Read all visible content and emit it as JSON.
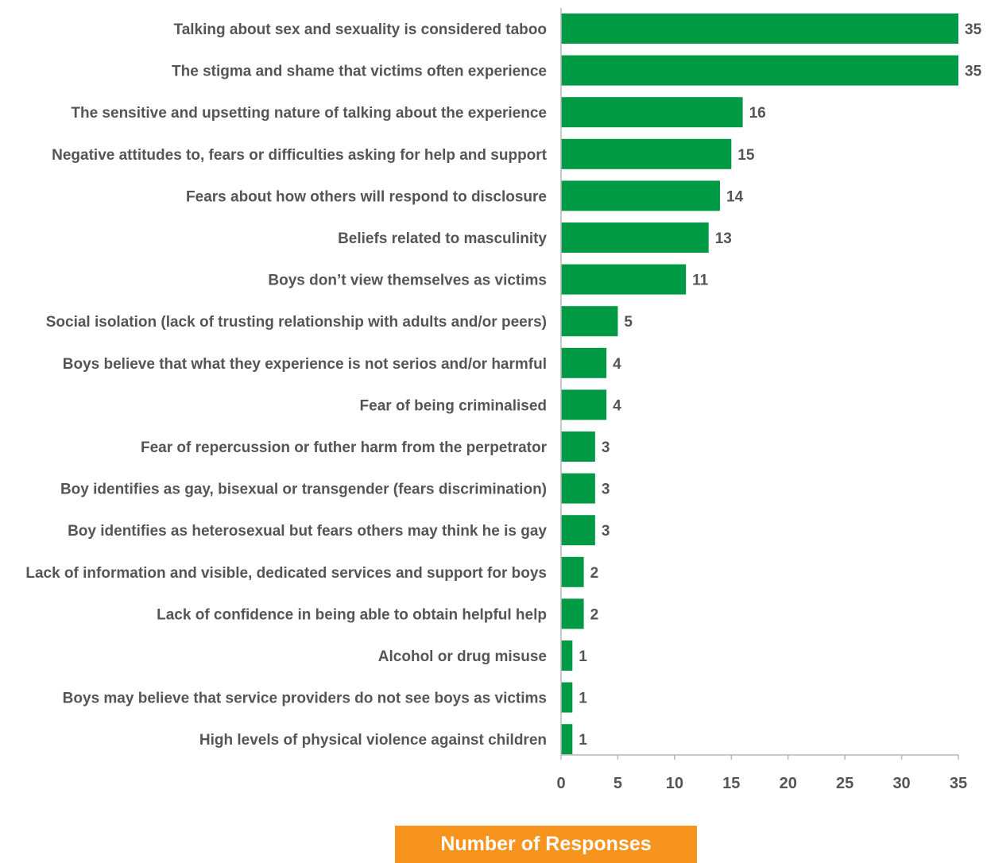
{
  "chart_data": {
    "type": "bar",
    "orientation": "horizontal",
    "categories": [
      "Talking about sex and sexuality is considered taboo",
      "The stigma and shame that victims often experience",
      "The sensitive and upsetting nature of talking about the experience",
      "Negative attitudes to, fears or difficulties asking for help and support",
      "Fears about how others will respond to disclosure",
      "Beliefs related to masculinity",
      "Boys don’t view themselves as victims",
      "Social isolation (lack of trusting relationship with adults and/or peers)",
      "Boys believe that what they experience is not serios and/or harmful",
      "Fear of being criminalised",
      "Fear of repercussion or futher harm from the perpetrator",
      "Boy identifies as gay, bisexual or transgender (fears discrimination)",
      "Boy identifies as heterosexual but fears others may think he is gay",
      "Lack of information and visible, dedicated services and support for boys",
      "Lack  of confidence in being able to obtain helpful help",
      "Alcohol or drug misuse",
      "Boys may believe that service providers do not see boys as victims",
      "High levels of physical violence against children"
    ],
    "values": [
      35,
      35,
      16,
      15,
      14,
      13,
      11,
      5,
      4,
      4,
      3,
      3,
      3,
      2,
      2,
      1,
      1,
      1
    ],
    "xlabel": "Number of Responses",
    "xlim": [
      0,
      35
    ],
    "xticks": [
      "0",
      "5",
      "10",
      "15",
      "20",
      "25",
      "30",
      "35"
    ],
    "grid": false,
    "bar_color": "#009a44",
    "xlabel_bg_color": "#f7941d"
  }
}
